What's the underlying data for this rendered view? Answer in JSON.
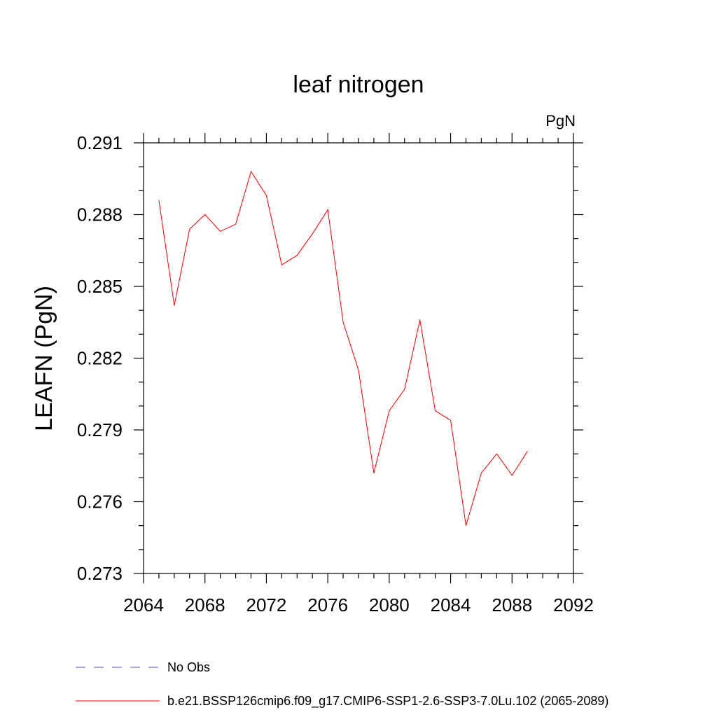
{
  "chart_data": {
    "type": "line",
    "title": "leaf nitrogen",
    "units": "PgN",
    "xlabel": "",
    "ylabel": "LEAFN  (PgN)",
    "xlim": [
      2064,
      2092
    ],
    "ylim": [
      0.273,
      0.291
    ],
    "x_ticks": [
      2064,
      2068,
      2072,
      2076,
      2080,
      2084,
      2088,
      2092
    ],
    "x_tick_labels": [
      "2064",
      "2068",
      "2072",
      "2076",
      "2080",
      "2084",
      "2088",
      "2092"
    ],
    "y_ticks": [
      0.273,
      0.276,
      0.279,
      0.282,
      0.285,
      0.288,
      0.291
    ],
    "y_tick_labels": [
      "0.273",
      "0.276",
      "0.279",
      "0.282",
      "0.285",
      "0.288",
      "0.291"
    ],
    "grid": false,
    "legend_position": "bottom-left",
    "series": [
      {
        "name": "b.e21.BSSP126cmip6.f09_g17.CMIP6-SSP1-2.6-SSP3-7.0Lu.102 (2065-2089)",
        "color": "#ff0000",
        "style": "solid",
        "x": [
          2065,
          2066,
          2067,
          2068,
          2069,
          2070,
          2071,
          2072,
          2073,
          2074,
          2075,
          2076,
          2077,
          2078,
          2079,
          2080,
          2081,
          2082,
          2083,
          2084,
          2085,
          2086,
          2087,
          2088,
          2089
        ],
        "y": [
          0.2886,
          0.2842,
          0.2874,
          0.288,
          0.2873,
          0.2876,
          0.2898,
          0.2888,
          0.2859,
          0.2863,
          0.2872,
          0.2882,
          0.2835,
          0.2815,
          0.2772,
          0.2798,
          0.2807,
          0.2836,
          0.2798,
          0.2794,
          0.275,
          0.2772,
          0.278,
          0.2771,
          0.2781
        ]
      },
      {
        "name": "No Obs",
        "color": "#5a4fa8",
        "style": "dashed",
        "x": [],
        "y": []
      }
    ]
  }
}
